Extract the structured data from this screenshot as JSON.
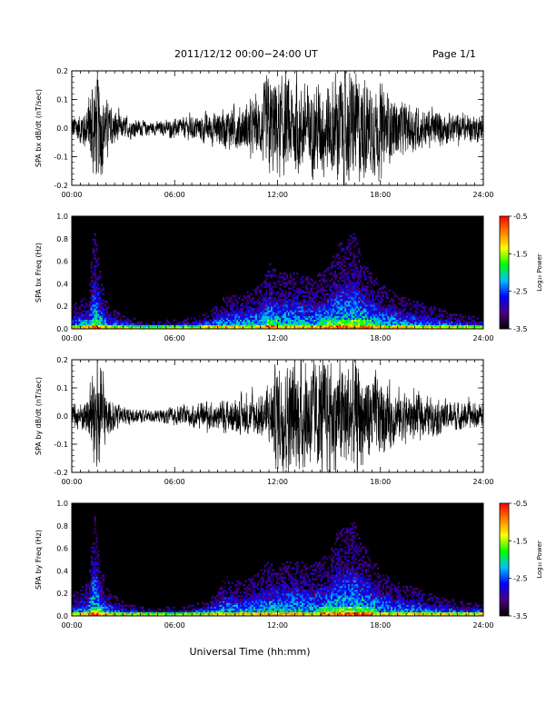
{
  "header": {
    "date_range": "2011/12/12   00:00−24:00 UT",
    "page": "Page 1/1"
  },
  "xaxis_title": "Universal Time (hh:mm)",
  "x_ticks": [
    "00:00",
    "06:00",
    "12:00",
    "18:00",
    "24:00"
  ],
  "colorbar": {
    "label": "Log₁₀ Power",
    "ticks": [
      "-0.5",
      "-1.5",
      "-2.5",
      "-3.5"
    ],
    "range": [
      -3.5,
      -0.5
    ],
    "colors": [
      "#000000",
      "#4b0082",
      "#0000ff",
      "#00bfff",
      "#00ff00",
      "#ffff00",
      "#ff8000",
      "#ff0000"
    ]
  },
  "chart_data": [
    {
      "type": "line",
      "ylabel": "SPA bx dB/dt (nT/sec)",
      "xlim": [
        0,
        24
      ],
      "ylim": [
        -0.2,
        0.2
      ],
      "y_ticks": [
        "0.2",
        "0.1",
        "0.0",
        "-0.1",
        "-0.2"
      ],
      "color": "#000000",
      "envelope": {
        "hours": [
          0,
          0.5,
          1.0,
          1.2,
          1.4,
          1.6,
          1.8,
          2.0,
          2.5,
          3,
          4,
          5,
          6,
          7,
          8,
          9,
          10,
          11,
          11.5,
          12,
          13,
          14,
          15,
          15.5,
          16,
          16.5,
          17,
          18,
          19,
          20,
          21,
          22,
          23,
          24
        ],
        "amplitude": [
          0.06,
          0.07,
          0.12,
          0.25,
          0.25,
          0.25,
          0.2,
          0.12,
          0.08,
          0.05,
          0.035,
          0.03,
          0.04,
          0.05,
          0.07,
          0.09,
          0.1,
          0.13,
          0.25,
          0.22,
          0.2,
          0.2,
          0.22,
          0.25,
          0.25,
          0.25,
          0.22,
          0.18,
          0.12,
          0.1,
          0.08,
          0.07,
          0.06,
          0.06
        ]
      }
    },
    {
      "type": "heatmap",
      "ylabel": "SPA bx Freq (Hz)",
      "xlim": [
        0,
        24
      ],
      "ylim": [
        0,
        1.0
      ],
      "y_ticks": [
        "1.0",
        "0.8",
        "0.6",
        "0.4",
        "0.2",
        "0.0"
      ],
      "activity": {
        "hours": [
          0,
          0.5,
          1.0,
          1.3,
          1.6,
          2.0,
          3,
          4,
          5,
          6,
          7,
          8,
          9,
          10,
          11,
          11.5,
          12,
          13,
          14,
          15,
          15.5,
          16,
          16.5,
          17,
          18,
          19,
          20,
          21,
          22,
          23,
          24
        ],
        "freq_extent_hz": [
          0.2,
          0.25,
          0.3,
          0.9,
          0.6,
          0.25,
          0.12,
          0.08,
          0.07,
          0.08,
          0.1,
          0.15,
          0.3,
          0.3,
          0.4,
          0.6,
          0.5,
          0.5,
          0.45,
          0.55,
          0.75,
          0.8,
          0.85,
          0.6,
          0.4,
          0.3,
          0.25,
          0.2,
          0.15,
          0.12,
          0.12
        ]
      }
    },
    {
      "type": "line",
      "ylabel": "SPA by dB/dt (nT/sec)",
      "xlim": [
        0,
        24
      ],
      "ylim": [
        -0.2,
        0.2
      ],
      "y_ticks": [
        "0.2",
        "0.1",
        "0.0",
        "-0.1",
        "-0.2"
      ],
      "color": "#000000",
      "envelope": {
        "hours": [
          0,
          0.5,
          1.0,
          1.2,
          1.4,
          1.6,
          1.8,
          2.0,
          2.5,
          3,
          4,
          5,
          6,
          7,
          8,
          9,
          10,
          11,
          11.5,
          12,
          13,
          14,
          15,
          15.5,
          16,
          16.5,
          17,
          18,
          19,
          20,
          21,
          22,
          23,
          24
        ],
        "amplitude": [
          0.05,
          0.06,
          0.1,
          0.25,
          0.25,
          0.25,
          0.2,
          0.1,
          0.07,
          0.04,
          0.03,
          0.03,
          0.04,
          0.05,
          0.06,
          0.07,
          0.08,
          0.1,
          0.12,
          0.25,
          0.25,
          0.25,
          0.25,
          0.25,
          0.25,
          0.25,
          0.22,
          0.17,
          0.12,
          0.1,
          0.08,
          0.07,
          0.06,
          0.06
        ]
      }
    },
    {
      "type": "heatmap",
      "ylabel": "SPA by Freq (Hz)",
      "xlim": [
        0,
        24
      ],
      "ylim": [
        0,
        1.0
      ],
      "y_ticks": [
        "1.0",
        "0.8",
        "0.6",
        "0.4",
        "0.2",
        "0.0"
      ],
      "activity": {
        "hours": [
          0,
          0.5,
          1.0,
          1.3,
          1.6,
          2.0,
          3,
          4,
          5,
          6,
          7,
          8,
          9,
          10,
          11,
          11.5,
          12,
          13,
          14,
          15,
          15.5,
          16,
          16.5,
          17,
          18,
          19,
          20,
          21,
          22,
          23,
          24
        ],
        "freq_extent_hz": [
          0.2,
          0.25,
          0.3,
          0.95,
          0.55,
          0.25,
          0.12,
          0.08,
          0.07,
          0.08,
          0.1,
          0.15,
          0.35,
          0.3,
          0.4,
          0.5,
          0.45,
          0.5,
          0.45,
          0.55,
          0.75,
          0.8,
          0.85,
          0.65,
          0.4,
          0.3,
          0.25,
          0.2,
          0.15,
          0.12,
          0.12
        ]
      }
    }
  ]
}
